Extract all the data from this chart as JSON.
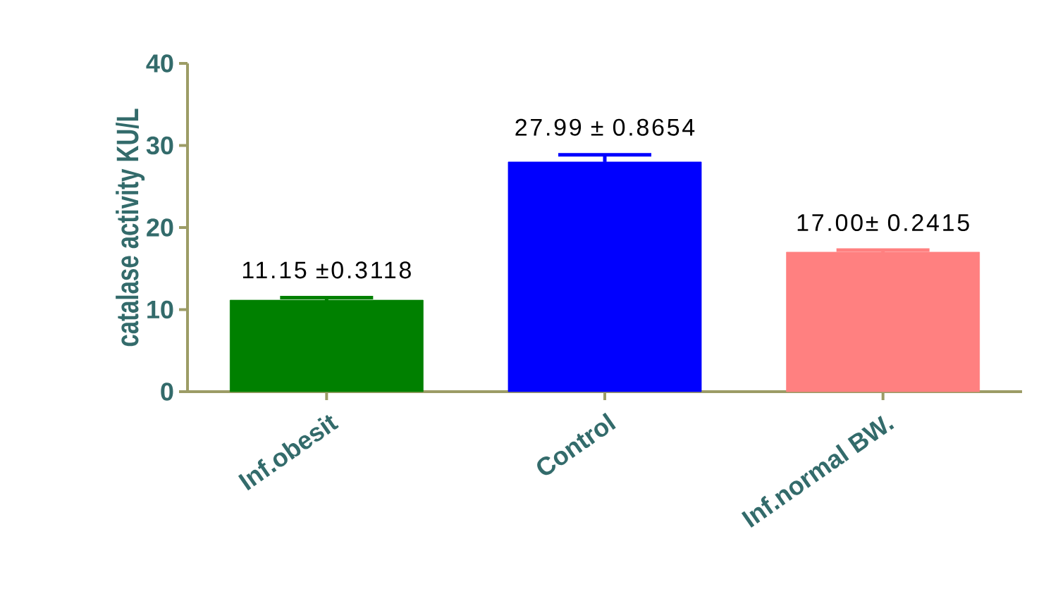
{
  "chart_data": {
    "type": "bar",
    "ylabel": "catalase activity KU/L",
    "categories": [
      "Inf.obesit",
      "Control",
      "Inf.normal BW."
    ],
    "values": [
      11.15,
      27.99,
      17.0
    ],
    "errors": [
      0.3118,
      0.8654,
      0.2415
    ],
    "value_labels": [
      "11.15 ±0.3118",
      "27.99 ± 0.8654",
      "17.00± 0.2415"
    ],
    "colors": [
      "#008000",
      "#0000ff",
      "#ff8080"
    ],
    "ylim": [
      0,
      40
    ],
    "yticks": [
      0,
      10,
      20,
      30,
      40
    ]
  }
}
